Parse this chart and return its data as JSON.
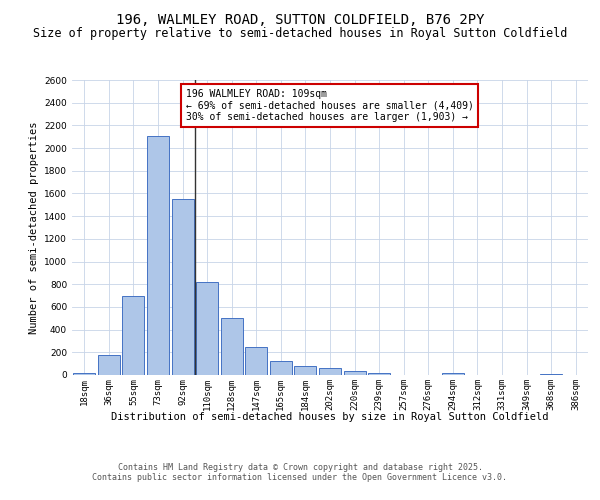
{
  "title_line1": "196, WALMLEY ROAD, SUTTON COLDFIELD, B76 2PY",
  "title_line2": "Size of property relative to semi-detached houses in Royal Sutton Coldfield",
  "xlabel": "Distribution of semi-detached houses by size in Royal Sutton Coldfield",
  "ylabel": "Number of semi-detached properties",
  "categories": [
    "18sqm",
    "36sqm",
    "55sqm",
    "73sqm",
    "92sqm",
    "110sqm",
    "128sqm",
    "147sqm",
    "165sqm",
    "184sqm",
    "202sqm",
    "220sqm",
    "239sqm",
    "257sqm",
    "276sqm",
    "294sqm",
    "312sqm",
    "331sqm",
    "349sqm",
    "368sqm",
    "386sqm"
  ],
  "values": [
    15,
    175,
    695,
    2110,
    1555,
    820,
    500,
    245,
    125,
    80,
    60,
    35,
    20,
    0,
    0,
    20,
    0,
    0,
    0,
    10,
    0
  ],
  "bar_color": "#aec6e8",
  "bar_edge_color": "#4472c4",
  "vline_index": 5,
  "vline_color": "#333333",
  "annotation_text": "196 WALMLEY ROAD: 109sqm\n← 69% of semi-detached houses are smaller (4,409)\n30% of semi-detached houses are larger (1,903) →",
  "annotation_box_color": "#ffffff",
  "annotation_border_color": "#cc0000",
  "ylim": [
    0,
    2600
  ],
  "yticks": [
    0,
    200,
    400,
    600,
    800,
    1000,
    1200,
    1400,
    1600,
    1800,
    2000,
    2200,
    2400,
    2600
  ],
  "background_color": "#ffffff",
  "grid_color": "#c8d4e8",
  "footer_text": "Contains HM Land Registry data © Crown copyright and database right 2025.\nContains public sector information licensed under the Open Government Licence v3.0.",
  "title_fontsize": 10,
  "subtitle_fontsize": 8.5,
  "axis_label_fontsize": 7.5,
  "tick_fontsize": 6.5,
  "annotation_fontsize": 7,
  "footer_fontsize": 6
}
